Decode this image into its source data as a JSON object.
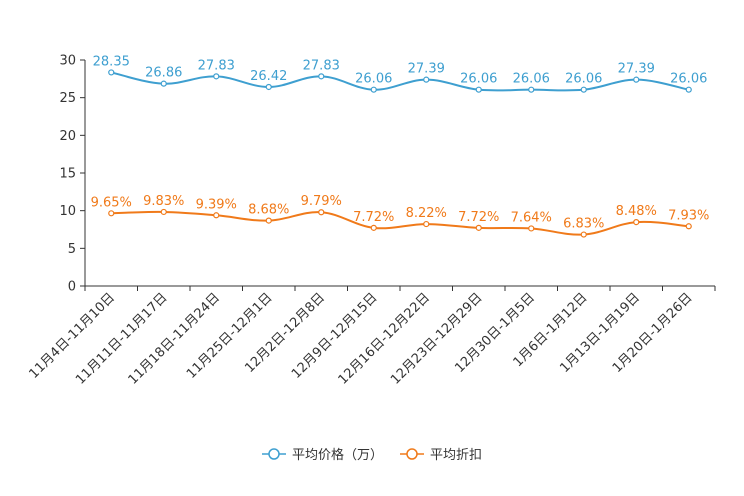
{
  "chart_data": {
    "type": "line",
    "title": "",
    "xlabel": "",
    "ylabel": "",
    "ylim": [
      0,
      30
    ],
    "yticks": [
      0,
      5,
      10,
      15,
      20,
      25,
      30
    ],
    "categories": [
      "11月4日-11月10日",
      "11月11日-11月17日",
      "11月18日-11月24日",
      "11月25日-12月1日",
      "12月2日-12月8日",
      "12月9日-12月15日",
      "12月16日-12月22日",
      "12月23日-12月29日",
      "12月30日-1月5日",
      "1月6日-1月12日",
      "1月13日-1月19日",
      "1月20日-1月26日"
    ],
    "series": [
      {
        "name": "平均价格（万）",
        "color": "#3e9fd0",
        "values": [
          28.35,
          26.86,
          27.83,
          26.42,
          27.83,
          26.06,
          27.39,
          26.06,
          26.06,
          26.06,
          27.39,
          26.06
        ],
        "labels": [
          "28.35",
          "26.86",
          "27.83",
          "26.42",
          "27.83",
          "26.06",
          "27.39",
          "26.06",
          "26.06",
          "26.06",
          "27.39",
          "26.06"
        ]
      },
      {
        "name": "平均折扣",
        "color": "#f07a1a",
        "values": [
          9.65,
          9.83,
          9.39,
          8.68,
          9.79,
          7.72,
          8.22,
          7.72,
          7.64,
          6.83,
          8.48,
          7.93
        ],
        "labels": [
          "9.65%",
          "9.83%",
          "9.39%",
          "8.68%",
          "9.79%",
          "7.72%",
          "8.22%",
          "7.72%",
          "7.64%",
          "6.83%",
          "8.48%",
          "7.93%"
        ]
      }
    ],
    "legend_position": "bottom-center",
    "grid": false
  }
}
